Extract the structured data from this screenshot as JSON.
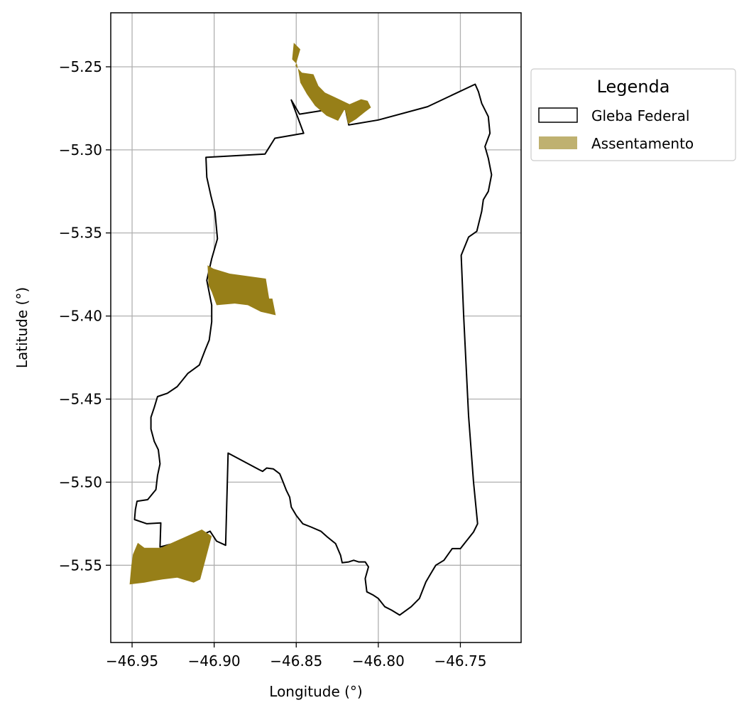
{
  "map": {
    "xlabel": "Longitude (°)",
    "ylabel": "Latitude (°)",
    "xlim": [
      -46.963,
      -46.713
    ],
    "ylim": [
      -5.5965,
      -5.2175
    ],
    "xticks": [
      -46.95,
      -46.9,
      -46.85,
      -46.8,
      -46.75
    ],
    "xtick_labels": [
      "−46.95",
      "−46.90",
      "−46.85",
      "−46.80",
      "−46.75"
    ],
    "yticks": [
      -5.25,
      -5.3,
      -5.35,
      -5.4,
      -5.45,
      -5.5,
      -5.55
    ],
    "ytick_labels": [
      "−5.25",
      "−5.30",
      "−5.35",
      "−5.40",
      "−5.45",
      "−5.50",
      "−5.55"
    ],
    "grid": true,
    "legend": {
      "title": "Legenda",
      "placement": "outside-upper-right",
      "items": [
        {
          "label": "Gleba Federal",
          "style": "outline"
        },
        {
          "label": "Assentamento",
          "style": "fill"
        }
      ]
    },
    "colors": {
      "gleba_edge": "#000000",
      "gleba_fill": "#ffffff",
      "assentamento_fill": "#977f18",
      "assentamento_legend": "#bfb170",
      "grid": "#b0b0b0"
    }
  },
  "features": {
    "gleba_federal": [
      [
        -46.848,
        -5.2785
      ],
      [
        -46.8255,
        -5.275
      ],
      [
        -46.82,
        -5.2755
      ],
      [
        -46.818,
        -5.285
      ],
      [
        -46.812,
        -5.284
      ],
      [
        -46.8,
        -5.282
      ],
      [
        -46.77,
        -5.274
      ],
      [
        -46.741,
        -5.2605
      ],
      [
        -46.739,
        -5.265
      ],
      [
        -46.737,
        -5.272
      ],
      [
        -46.733,
        -5.28
      ],
      [
        -46.732,
        -5.29
      ],
      [
        -46.735,
        -5.298
      ],
      [
        -46.733,
        -5.305
      ],
      [
        -46.731,
        -5.315
      ],
      [
        -46.733,
        -5.325
      ],
      [
        -46.736,
        -5.33
      ],
      [
        -46.737,
        -5.337
      ],
      [
        -46.74,
        -5.349
      ],
      [
        -46.745,
        -5.3525
      ],
      [
        -46.7495,
        -5.3635
      ],
      [
        -46.748,
        -5.4
      ],
      [
        -46.745,
        -5.46
      ],
      [
        -46.742,
        -5.5
      ],
      [
        -46.7395,
        -5.525
      ],
      [
        -46.742,
        -5.53
      ],
      [
        -46.746,
        -5.535
      ],
      [
        -46.75,
        -5.54
      ],
      [
        -46.755,
        -5.54
      ],
      [
        -46.76,
        -5.547
      ],
      [
        -46.765,
        -5.55
      ],
      [
        -46.768,
        -5.555
      ],
      [
        -46.771,
        -5.56
      ],
      [
        -46.775,
        -5.57
      ],
      [
        -46.78,
        -5.575
      ],
      [
        -46.787,
        -5.58
      ],
      [
        -46.792,
        -5.577
      ],
      [
        -46.796,
        -5.575
      ],
      [
        -46.8,
        -5.57
      ],
      [
        -46.803,
        -5.568
      ],
      [
        -46.807,
        -5.566
      ],
      [
        -46.808,
        -5.558
      ],
      [
        -46.806,
        -5.551
      ],
      [
        -46.808,
        -5.548
      ],
      [
        -46.812,
        -5.548
      ],
      [
        -46.815,
        -5.547
      ],
      [
        -46.818,
        -5.548
      ],
      [
        -46.822,
        -5.5485
      ],
      [
        -46.823,
        -5.544
      ],
      [
        -46.826,
        -5.537
      ],
      [
        -46.831,
        -5.533
      ],
      [
        -46.835,
        -5.5295
      ],
      [
        -46.841,
        -5.527
      ],
      [
        -46.846,
        -5.525
      ],
      [
        -46.85,
        -5.52
      ],
      [
        -46.853,
        -5.515
      ],
      [
        -46.854,
        -5.509
      ],
      [
        -46.856,
        -5.505
      ],
      [
        -46.858,
        -5.5
      ],
      [
        -46.86,
        -5.495
      ],
      [
        -46.864,
        -5.492
      ],
      [
        -46.868,
        -5.4915
      ],
      [
        -46.8705,
        -5.4935
      ],
      [
        -46.8725,
        -5.4925
      ],
      [
        -46.8915,
        -5.4825
      ],
      [
        -46.893,
        -5.538
      ],
      [
        -46.8985,
        -5.5355
      ],
      [
        -46.9025,
        -5.5295
      ],
      [
        -46.9115,
        -5.5335
      ],
      [
        -46.933,
        -5.539
      ],
      [
        -46.9325,
        -5.5245
      ],
      [
        -46.941,
        -5.525
      ],
      [
        -46.9485,
        -5.5225
      ],
      [
        -46.948,
        -5.5165
      ],
      [
        -46.947,
        -5.5115
      ],
      [
        -46.9405,
        -5.5105
      ],
      [
        -46.9355,
        -5.5045
      ],
      [
        -46.9345,
        -5.496
      ],
      [
        -46.933,
        -5.489
      ],
      [
        -46.934,
        -5.4805
      ],
      [
        -46.9365,
        -5.4755
      ],
      [
        -46.9385,
        -5.468
      ],
      [
        -46.9385,
        -5.461
      ],
      [
        -46.9365,
        -5.455
      ],
      [
        -46.9345,
        -5.4485
      ],
      [
        -46.9285,
        -5.4465
      ],
      [
        -46.9225,
        -5.4425
      ],
      [
        -46.916,
        -5.4345
      ],
      [
        -46.909,
        -5.4295
      ],
      [
        -46.9055,
        -5.4205
      ],
      [
        -46.903,
        -5.4145
      ],
      [
        -46.9015,
        -5.4035
      ],
      [
        -46.9015,
        -5.3935
      ],
      [
        -46.9045,
        -5.3785
      ],
      [
        -46.9015,
        -5.3655
      ],
      [
        -46.898,
        -5.3535
      ],
      [
        -46.8995,
        -5.3375
      ],
      [
        -46.902,
        -5.3275
      ],
      [
        -46.9045,
        -5.3165
      ],
      [
        -46.905,
        -5.3045
      ],
      [
        -46.869,
        -5.3025
      ],
      [
        -46.863,
        -5.293
      ],
      [
        -46.8455,
        -5.29
      ],
      [
        -46.853,
        -5.27
      ],
      [
        -46.848,
        -5.2785
      ]
    ],
    "assentamento": [
      [
        [
          -46.8365,
          -5.2615
        ],
        [
          -46.8325,
          -5.2655
        ],
        [
          -46.826,
          -5.2685
        ],
        [
          -46.8175,
          -5.2725
        ],
        [
          -46.8105,
          -5.2695
        ],
        [
          -46.8065,
          -5.2705
        ],
        [
          -46.8045,
          -5.2745
        ],
        [
          -46.8085,
          -5.2775
        ],
        [
          -46.8135,
          -5.2815
        ],
        [
          -46.8185,
          -5.2845
        ],
        [
          -46.8195,
          -5.279
        ],
        [
          -46.8205,
          -5.2755
        ],
        [
          -46.8245,
          -5.2825
        ],
        [
          -46.8315,
          -5.2795
        ],
        [
          -46.8385,
          -5.2735
        ],
        [
          -46.8435,
          -5.2665
        ],
        [
          -46.8475,
          -5.2595
        ],
        [
          -46.8485,
          -5.2535
        ],
        [
          -46.8495,
          -5.2485
        ],
        [
          -46.8525,
          -5.2455
        ],
        [
          -46.8515,
          -5.2355
        ],
        [
          -46.8475,
          -5.2395
        ],
        [
          -46.8505,
          -5.2495
        ],
        [
          -46.8465,
          -5.2535
        ],
        [
          -46.8395,
          -5.2545
        ],
        [
          -46.8365,
          -5.2615
        ]
      ],
      [
        [
          -46.904,
          -5.3695
        ],
        [
          -46.9005,
          -5.3715
        ],
        [
          -46.8905,
          -5.3745
        ],
        [
          -46.8685,
          -5.3775
        ],
        [
          -46.8665,
          -5.3895
        ],
        [
          -46.8645,
          -5.3895
        ],
        [
          -46.8625,
          -5.3995
        ],
        [
          -46.8715,
          -5.3975
        ],
        [
          -46.8795,
          -5.3935
        ],
        [
          -46.8875,
          -5.3925
        ],
        [
          -46.8985,
          -5.3935
        ],
        [
          -46.9015,
          -5.3855
        ],
        [
          -46.9035,
          -5.3815
        ],
        [
          -46.904,
          -5.3695
        ]
      ],
      [
        [
          -46.9465,
          -5.5365
        ],
        [
          -46.9425,
          -5.5395
        ],
        [
          -46.9325,
          -5.5395
        ],
        [
          -46.9075,
          -5.5285
        ],
        [
          -46.9015,
          -5.5325
        ],
        [
          -46.9055,
          -5.5475
        ],
        [
          -46.9085,
          -5.5585
        ],
        [
          -46.9125,
          -5.5605
        ],
        [
          -46.9225,
          -5.5575
        ],
        [
          -46.9315,
          -5.5585
        ],
        [
          -46.9375,
          -5.5595
        ],
        [
          -46.9425,
          -5.5605
        ],
        [
          -46.9515,
          -5.5615
        ],
        [
          -46.9505,
          -5.5505
        ],
        [
          -46.9495,
          -5.5435
        ],
        [
          -46.9465,
          -5.5365
        ]
      ]
    ]
  }
}
